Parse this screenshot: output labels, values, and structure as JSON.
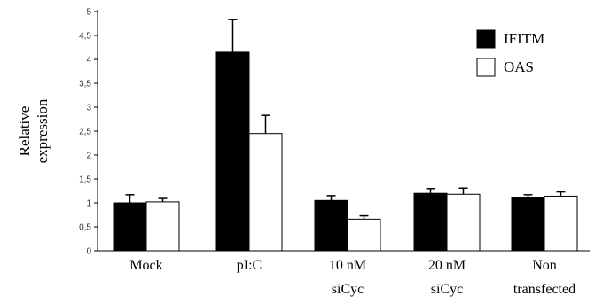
{
  "chart_data": {
    "type": "bar",
    "title": "",
    "xlabel": "",
    "ylabel": "Relative expression",
    "ylabel_lines": [
      "Relative",
      "expression"
    ],
    "ylim": [
      0,
      5
    ],
    "yticks": [
      "0",
      "0,5",
      "1",
      "1,5",
      "2",
      "2,5",
      "3",
      "3,5",
      "4",
      "4,5",
      "5"
    ],
    "ytick_values": [
      0,
      0.5,
      1,
      1.5,
      2,
      2.5,
      3,
      3.5,
      4,
      4.5,
      5
    ],
    "categories": [
      "Mock",
      "pI:C",
      "10 nM siCyc",
      "20 nM siCyc",
      "Non transfected"
    ],
    "category_lines": [
      [
        "Mock"
      ],
      [
        "pI:C"
      ],
      [
        "10 nM",
        "siCyc"
      ],
      [
        "20 nM",
        "siCyc"
      ],
      [
        "Non",
        "transfected"
      ]
    ],
    "series": [
      {
        "name": "IFITM",
        "color": "#000000",
        "values": [
          1.0,
          4.15,
          1.05,
          1.2,
          1.12
        ],
        "errors": [
          0.17,
          0.68,
          0.1,
          0.1,
          0.05
        ]
      },
      {
        "name": "OAS",
        "color": "#ffffff",
        "values": [
          1.02,
          2.45,
          0.66,
          1.18,
          1.14
        ],
        "errors": [
          0.09,
          0.38,
          0.07,
          0.13,
          0.09
        ]
      }
    ],
    "grid": false,
    "legend_position": "top-right",
    "error_bars": "positive"
  }
}
